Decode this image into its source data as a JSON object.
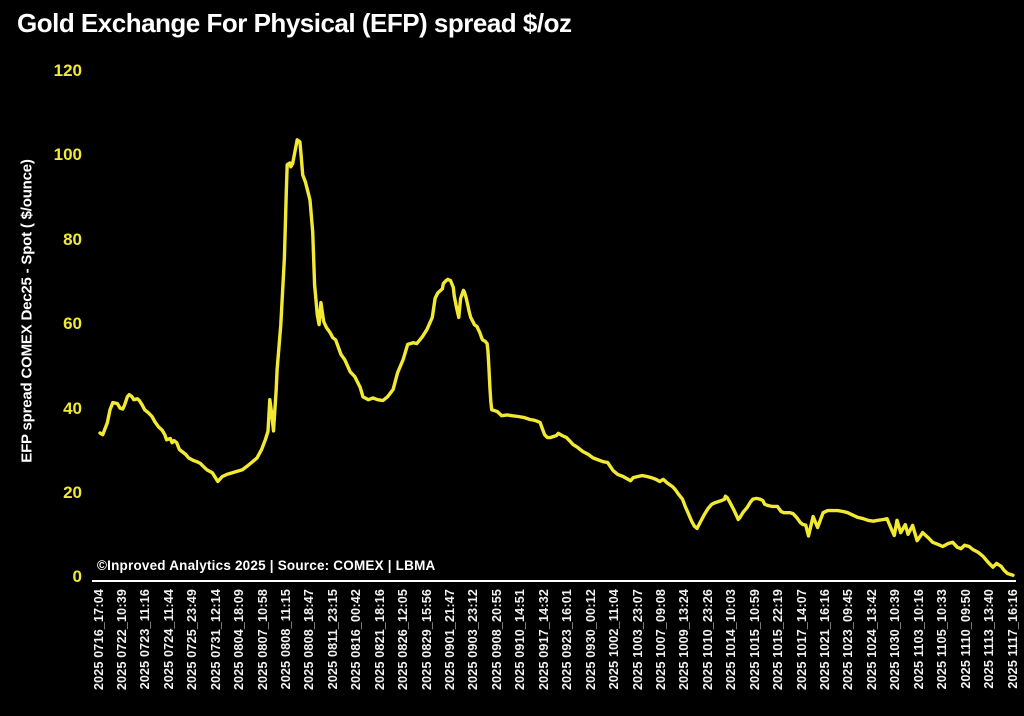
{
  "window": {
    "background": "#000000"
  },
  "chart_data": {
    "type": "line",
    "title": "Gold Exchange For Physical (EFP) spread $/oz",
    "ylabel": "EFP spread  COMEX Dec25 - Spot ( $/ounce)",
    "xlabel": "",
    "ylim": [
      0,
      120
    ],
    "yticks": [
      0,
      20,
      40,
      60,
      80,
      100,
      120
    ],
    "grid": false,
    "legend_position": "none",
    "background_color": "#000000",
    "line_color": "#f2e933",
    "ytick_color": "#f2e933",
    "text_color": "#ffffff",
    "source_note": "©Inproved Analytics 2025 | Source: COMEX | LBMA",
    "x_tick_labels": [
      "2025 0716_17:04",
      "2025 0722_10:39",
      "2025 0723_11:16",
      "2025 0724_11:44",
      "2025 0725_23:49",
      "2025 0731_12:14",
      "2025 0804_18:09",
      "2025 0807_10:58",
      "2025 0808_11:15",
      "2025 0808_18:47",
      "2025 0811_23:15",
      "2025 0816_00:42",
      "2025 0821_18:16",
      "2025 0826_12:05",
      "2025 0829_15:56",
      "2025 0901_21:47",
      "2025 0903_23:12",
      "2025 0908_20:55",
      "2025 0910_14:51",
      "2025 0917_14:32",
      "2025 0923_16:01",
      "2025 0930_00:12",
      "2025 1002_11:04",
      "2025 1003_23:07",
      "2025 1007_09:08",
      "2025 1009_13:24",
      "2025 1010_23:26",
      "2025 1014_10:03",
      "2025 1015_10:59",
      "2025 1015_22:19",
      "2025 1017_14:07",
      "2025 1021_16:16",
      "2025 1023_09:45",
      "2025 1024_13:42",
      "2025 1030_10:39",
      "2025 1103_10:16",
      "2025 1105_10:33",
      "2025 1110_09:50",
      "2025 1113_13:40",
      "2025 1117_16:16"
    ],
    "series": [
      {
        "name": "EFP spread COMEX Dec25 - Spot",
        "x_unit": "percent_of_time_axis",
        "y_unit": "usd_per_ounce",
        "points": [
          [
            0,
            34.2
          ],
          [
            0.3,
            33.8
          ],
          [
            0.8,
            36.6
          ],
          [
            1.1,
            39.7
          ],
          [
            1.4,
            41.4
          ],
          [
            1.9,
            41.2
          ],
          [
            2.2,
            40.1
          ],
          [
            2.5,
            39.9
          ],
          [
            2.7,
            40.9
          ],
          [
            3.0,
            42.8
          ],
          [
            3.2,
            43.3
          ],
          [
            3.5,
            42.8
          ],
          [
            3.7,
            42.1
          ],
          [
            4.1,
            42.3
          ],
          [
            4.3,
            41.9
          ],
          [
            4.6,
            40.9
          ],
          [
            4.9,
            39.7
          ],
          [
            5.3,
            39.0
          ],
          [
            5.7,
            38.1
          ],
          [
            6.0,
            36.9
          ],
          [
            6.4,
            35.7
          ],
          [
            6.8,
            34.9
          ],
          [
            7.1,
            33.8
          ],
          [
            7.3,
            32.6
          ],
          [
            7.7,
            32.9
          ],
          [
            7.9,
            31.9
          ],
          [
            8.1,
            32.4
          ],
          [
            8.4,
            31.9
          ],
          [
            8.7,
            30.3
          ],
          [
            9.1,
            29.6
          ],
          [
            9.4,
            29.1
          ],
          [
            9.7,
            28.3
          ],
          [
            10.2,
            27.7
          ],
          [
            10.6,
            27.4
          ],
          [
            11.0,
            27.0
          ],
          [
            11.3,
            26.3
          ],
          [
            11.7,
            25.5
          ],
          [
            12.3,
            24.8
          ],
          [
            12.9,
            22.7
          ],
          [
            13.4,
            23.9
          ],
          [
            13.9,
            24.4
          ],
          [
            14.5,
            24.8
          ],
          [
            15.0,
            25.1
          ],
          [
            15.6,
            25.5
          ],
          [
            16.1,
            26.3
          ],
          [
            16.6,
            27.2
          ],
          [
            17.2,
            28.3
          ],
          [
            17.7,
            30.3
          ],
          [
            18.1,
            32.6
          ],
          [
            18.4,
            34.6
          ],
          [
            18.6,
            42.1
          ],
          [
            18.8,
            39.0
          ],
          [
            19.0,
            34.7
          ],
          [
            19.3,
            44.5
          ],
          [
            19.4,
            49.2
          ],
          [
            19.8,
            59.9
          ],
          [
            20.2,
            75.7
          ],
          [
            20.4,
            91.4
          ],
          [
            20.5,
            97.8
          ],
          [
            20.8,
            98.2
          ],
          [
            20.9,
            97.3
          ],
          [
            21.1,
            98.0
          ],
          [
            21.6,
            103.7
          ],
          [
            21.9,
            103.2
          ],
          [
            22.0,
            100.6
          ],
          [
            22.2,
            95.4
          ],
          [
            22.5,
            93.7
          ],
          [
            22.8,
            91.1
          ],
          [
            23.0,
            89.4
          ],
          [
            23.3,
            81.9
          ],
          [
            23.5,
            69.3
          ],
          [
            23.8,
            62.2
          ],
          [
            24.0,
            59.9
          ],
          [
            24.2,
            65.1
          ],
          [
            24.5,
            60.6
          ],
          [
            24.8,
            59.2
          ],
          [
            25.2,
            58.0
          ],
          [
            25.5,
            56.8
          ],
          [
            25.8,
            56.3
          ],
          [
            26.4,
            52.8
          ],
          [
            26.8,
            51.6
          ],
          [
            27.4,
            48.7
          ],
          [
            27.9,
            47.6
          ],
          [
            28.5,
            45.0
          ],
          [
            28.8,
            42.8
          ],
          [
            29.4,
            42.1
          ],
          [
            29.9,
            42.5
          ],
          [
            30.4,
            42.1
          ],
          [
            31.0,
            41.9
          ],
          [
            31.5,
            42.8
          ],
          [
            32.1,
            44.5
          ],
          [
            32.6,
            48.5
          ],
          [
            33.2,
            51.6
          ],
          [
            33.7,
            55.2
          ],
          [
            34.3,
            55.6
          ],
          [
            34.7,
            55.4
          ],
          [
            35.3,
            57.0
          ],
          [
            35.8,
            58.7
          ],
          [
            36.4,
            61.6
          ],
          [
            36.7,
            66.1
          ],
          [
            37.0,
            67.4
          ],
          [
            37.5,
            68.4
          ],
          [
            37.6,
            69.6
          ],
          [
            37.9,
            70.3
          ],
          [
            38.1,
            70.6
          ],
          [
            38.4,
            70.3
          ],
          [
            38.7,
            68.7
          ],
          [
            38.8,
            66.8
          ],
          [
            39.0,
            64.4
          ],
          [
            39.2,
            62.5
          ],
          [
            39.3,
            61.6
          ],
          [
            39.5,
            66.1
          ],
          [
            39.8,
            68.0
          ],
          [
            39.9,
            67.7
          ],
          [
            40.1,
            66.3
          ],
          [
            40.3,
            64.4
          ],
          [
            40.4,
            63.2
          ],
          [
            40.6,
            61.6
          ],
          [
            40.9,
            60.4
          ],
          [
            41.0,
            59.9
          ],
          [
            41.3,
            59.4
          ],
          [
            41.4,
            58.9
          ],
          [
            41.6,
            58.0
          ],
          [
            41.8,
            56.8
          ],
          [
            41.9,
            56.3
          ],
          [
            42.2,
            55.9
          ],
          [
            42.4,
            55.4
          ],
          [
            42.5,
            53.5
          ],
          [
            42.6,
            49.7
          ],
          [
            42.7,
            45.0
          ],
          [
            42.8,
            41.7
          ],
          [
            42.9,
            39.7
          ],
          [
            43.5,
            39.3
          ],
          [
            44.0,
            38.3
          ],
          [
            44.6,
            38.5
          ],
          [
            45.1,
            38.3
          ],
          [
            45.8,
            38.1
          ],
          [
            46.4,
            37.9
          ],
          [
            47.1,
            37.4
          ],
          [
            47.6,
            37.2
          ],
          [
            48.0,
            36.9
          ],
          [
            48.2,
            36.7
          ],
          [
            48.4,
            35.5
          ],
          [
            48.7,
            33.8
          ],
          [
            49.0,
            33.1
          ],
          [
            49.3,
            33.1
          ],
          [
            50.0,
            33.6
          ],
          [
            50.2,
            34.1
          ],
          [
            50.6,
            33.6
          ],
          [
            51.1,
            33.1
          ],
          [
            51.5,
            32.2
          ],
          [
            51.8,
            31.5
          ],
          [
            52.3,
            30.8
          ],
          [
            52.6,
            30.3
          ],
          [
            52.9,
            29.8
          ],
          [
            53.5,
            29.1
          ],
          [
            54.0,
            28.3
          ],
          [
            54.5,
            27.9
          ],
          [
            55.1,
            27.4
          ],
          [
            55.6,
            27.2
          ],
          [
            56.2,
            25.3
          ],
          [
            56.7,
            24.4
          ],
          [
            57.3,
            23.9
          ],
          [
            57.7,
            23.4
          ],
          [
            58.1,
            22.9
          ],
          [
            58.4,
            23.6
          ],
          [
            58.9,
            23.9
          ],
          [
            59.4,
            24.1
          ],
          [
            59.9,
            23.9
          ],
          [
            60.4,
            23.6
          ],
          [
            60.9,
            23.2
          ],
          [
            61.3,
            22.7
          ],
          [
            61.7,
            23.2
          ],
          [
            62.1,
            22.4
          ],
          [
            62.7,
            21.5
          ],
          [
            63.0,
            20.8
          ],
          [
            63.4,
            19.6
          ],
          [
            63.8,
            18.5
          ],
          [
            64.1,
            16.8
          ],
          [
            64.4,
            15.3
          ],
          [
            64.8,
            13.3
          ],
          [
            65.1,
            12.1
          ],
          [
            65.4,
            11.6
          ],
          [
            65.8,
            13.3
          ],
          [
            66.2,
            14.9
          ],
          [
            66.6,
            16.3
          ],
          [
            67.0,
            17.3
          ],
          [
            67.4,
            17.7
          ],
          [
            67.8,
            18.0
          ],
          [
            68.1,
            18.2
          ],
          [
            68.4,
            18.5
          ],
          [
            68.5,
            19.2
          ],
          [
            68.7,
            18.9
          ],
          [
            69.0,
            17.7
          ],
          [
            69.4,
            16.1
          ],
          [
            69.8,
            14.2
          ],
          [
            69.9,
            13.7
          ],
          [
            70.1,
            14.2
          ],
          [
            70.4,
            15.3
          ],
          [
            70.9,
            16.6
          ],
          [
            71.2,
            17.7
          ],
          [
            71.5,
            18.5
          ],
          [
            71.9,
            18.7
          ],
          [
            72.3,
            18.5
          ],
          [
            72.6,
            18.2
          ],
          [
            72.8,
            17.3
          ],
          [
            73.2,
            17.0
          ],
          [
            73.6,
            16.8
          ],
          [
            74.2,
            16.8
          ],
          [
            74.6,
            15.6
          ],
          [
            74.9,
            15.3
          ],
          [
            75.6,
            15.3
          ],
          [
            75.9,
            15.1
          ],
          [
            76.3,
            14.2
          ],
          [
            76.7,
            13.0
          ],
          [
            77.0,
            12.5
          ],
          [
            77.3,
            12.4
          ],
          [
            77.6,
            9.8
          ],
          [
            78.1,
            14.4
          ],
          [
            78.6,
            11.8
          ],
          [
            79.2,
            15.3
          ],
          [
            79.7,
            15.8
          ],
          [
            80.3,
            15.8
          ],
          [
            80.8,
            15.8
          ],
          [
            81.4,
            15.6
          ],
          [
            81.9,
            15.3
          ],
          [
            82.5,
            14.7
          ],
          [
            83.0,
            14.2
          ],
          [
            83.6,
            13.9
          ],
          [
            84.1,
            13.5
          ],
          [
            84.7,
            13.3
          ],
          [
            85.2,
            13.5
          ],
          [
            85.8,
            13.7
          ],
          [
            86.2,
            13.9
          ],
          [
            86.7,
            11.3
          ],
          [
            87.0,
            9.9
          ],
          [
            87.3,
            13.5
          ],
          [
            87.7,
            10.6
          ],
          [
            88.2,
            12.5
          ],
          [
            88.5,
            10.2
          ],
          [
            89.0,
            12.3
          ],
          [
            89.5,
            8.7
          ],
          [
            89.9,
            9.9
          ],
          [
            90.1,
            10.6
          ],
          [
            90.7,
            9.4
          ],
          [
            91.2,
            8.3
          ],
          [
            91.8,
            7.8
          ],
          [
            92.3,
            7.3
          ],
          [
            92.9,
            8.0
          ],
          [
            93.4,
            8.3
          ],
          [
            93.9,
            7.1
          ],
          [
            94.3,
            6.8
          ],
          [
            94.7,
            7.6
          ],
          [
            95.2,
            7.3
          ],
          [
            95.6,
            6.6
          ],
          [
            96.2,
            5.9
          ],
          [
            96.7,
            5.0
          ],
          [
            97.3,
            3.5
          ],
          [
            97.8,
            2.4
          ],
          [
            98.2,
            3.3
          ],
          [
            98.7,
            2.6
          ],
          [
            99.0,
            1.7
          ],
          [
            99.4,
            0.9
          ],
          [
            100,
            0.5
          ]
        ]
      }
    ]
  }
}
